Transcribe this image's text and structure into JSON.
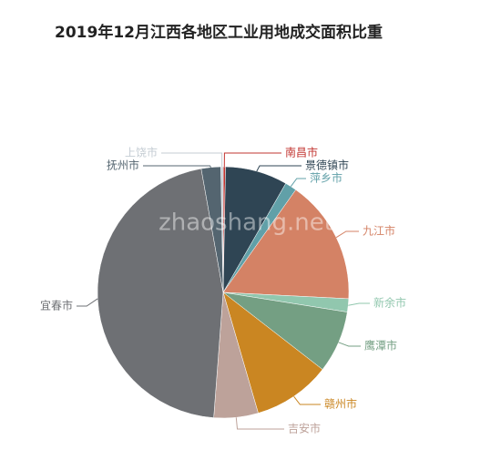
{
  "chart_data": {
    "type": "pie",
    "title": "2019年12月江西各地区工业用地成交面积比重",
    "watermark": "zhaoshang.net",
    "categories": [
      "南昌市",
      "景德镇市",
      "萍乡市",
      "九江市",
      "新余市",
      "鹰潭市",
      "赣州市",
      "吉安市",
      "宜春市",
      "抚州市",
      "上饶市"
    ],
    "values": [
      0.3,
      8,
      1.5,
      16,
      1.7,
      8,
      10,
      5.7,
      46,
      2.5,
      0.3
    ],
    "colors": [
      "#c23531",
      "#2f4554",
      "#61a0a8",
      "#d48265",
      "#91c7ae",
      "#749f83",
      "#ca8622",
      "#bda29a",
      "#6e7074",
      "#546570",
      "#c4ccd3"
    ]
  }
}
